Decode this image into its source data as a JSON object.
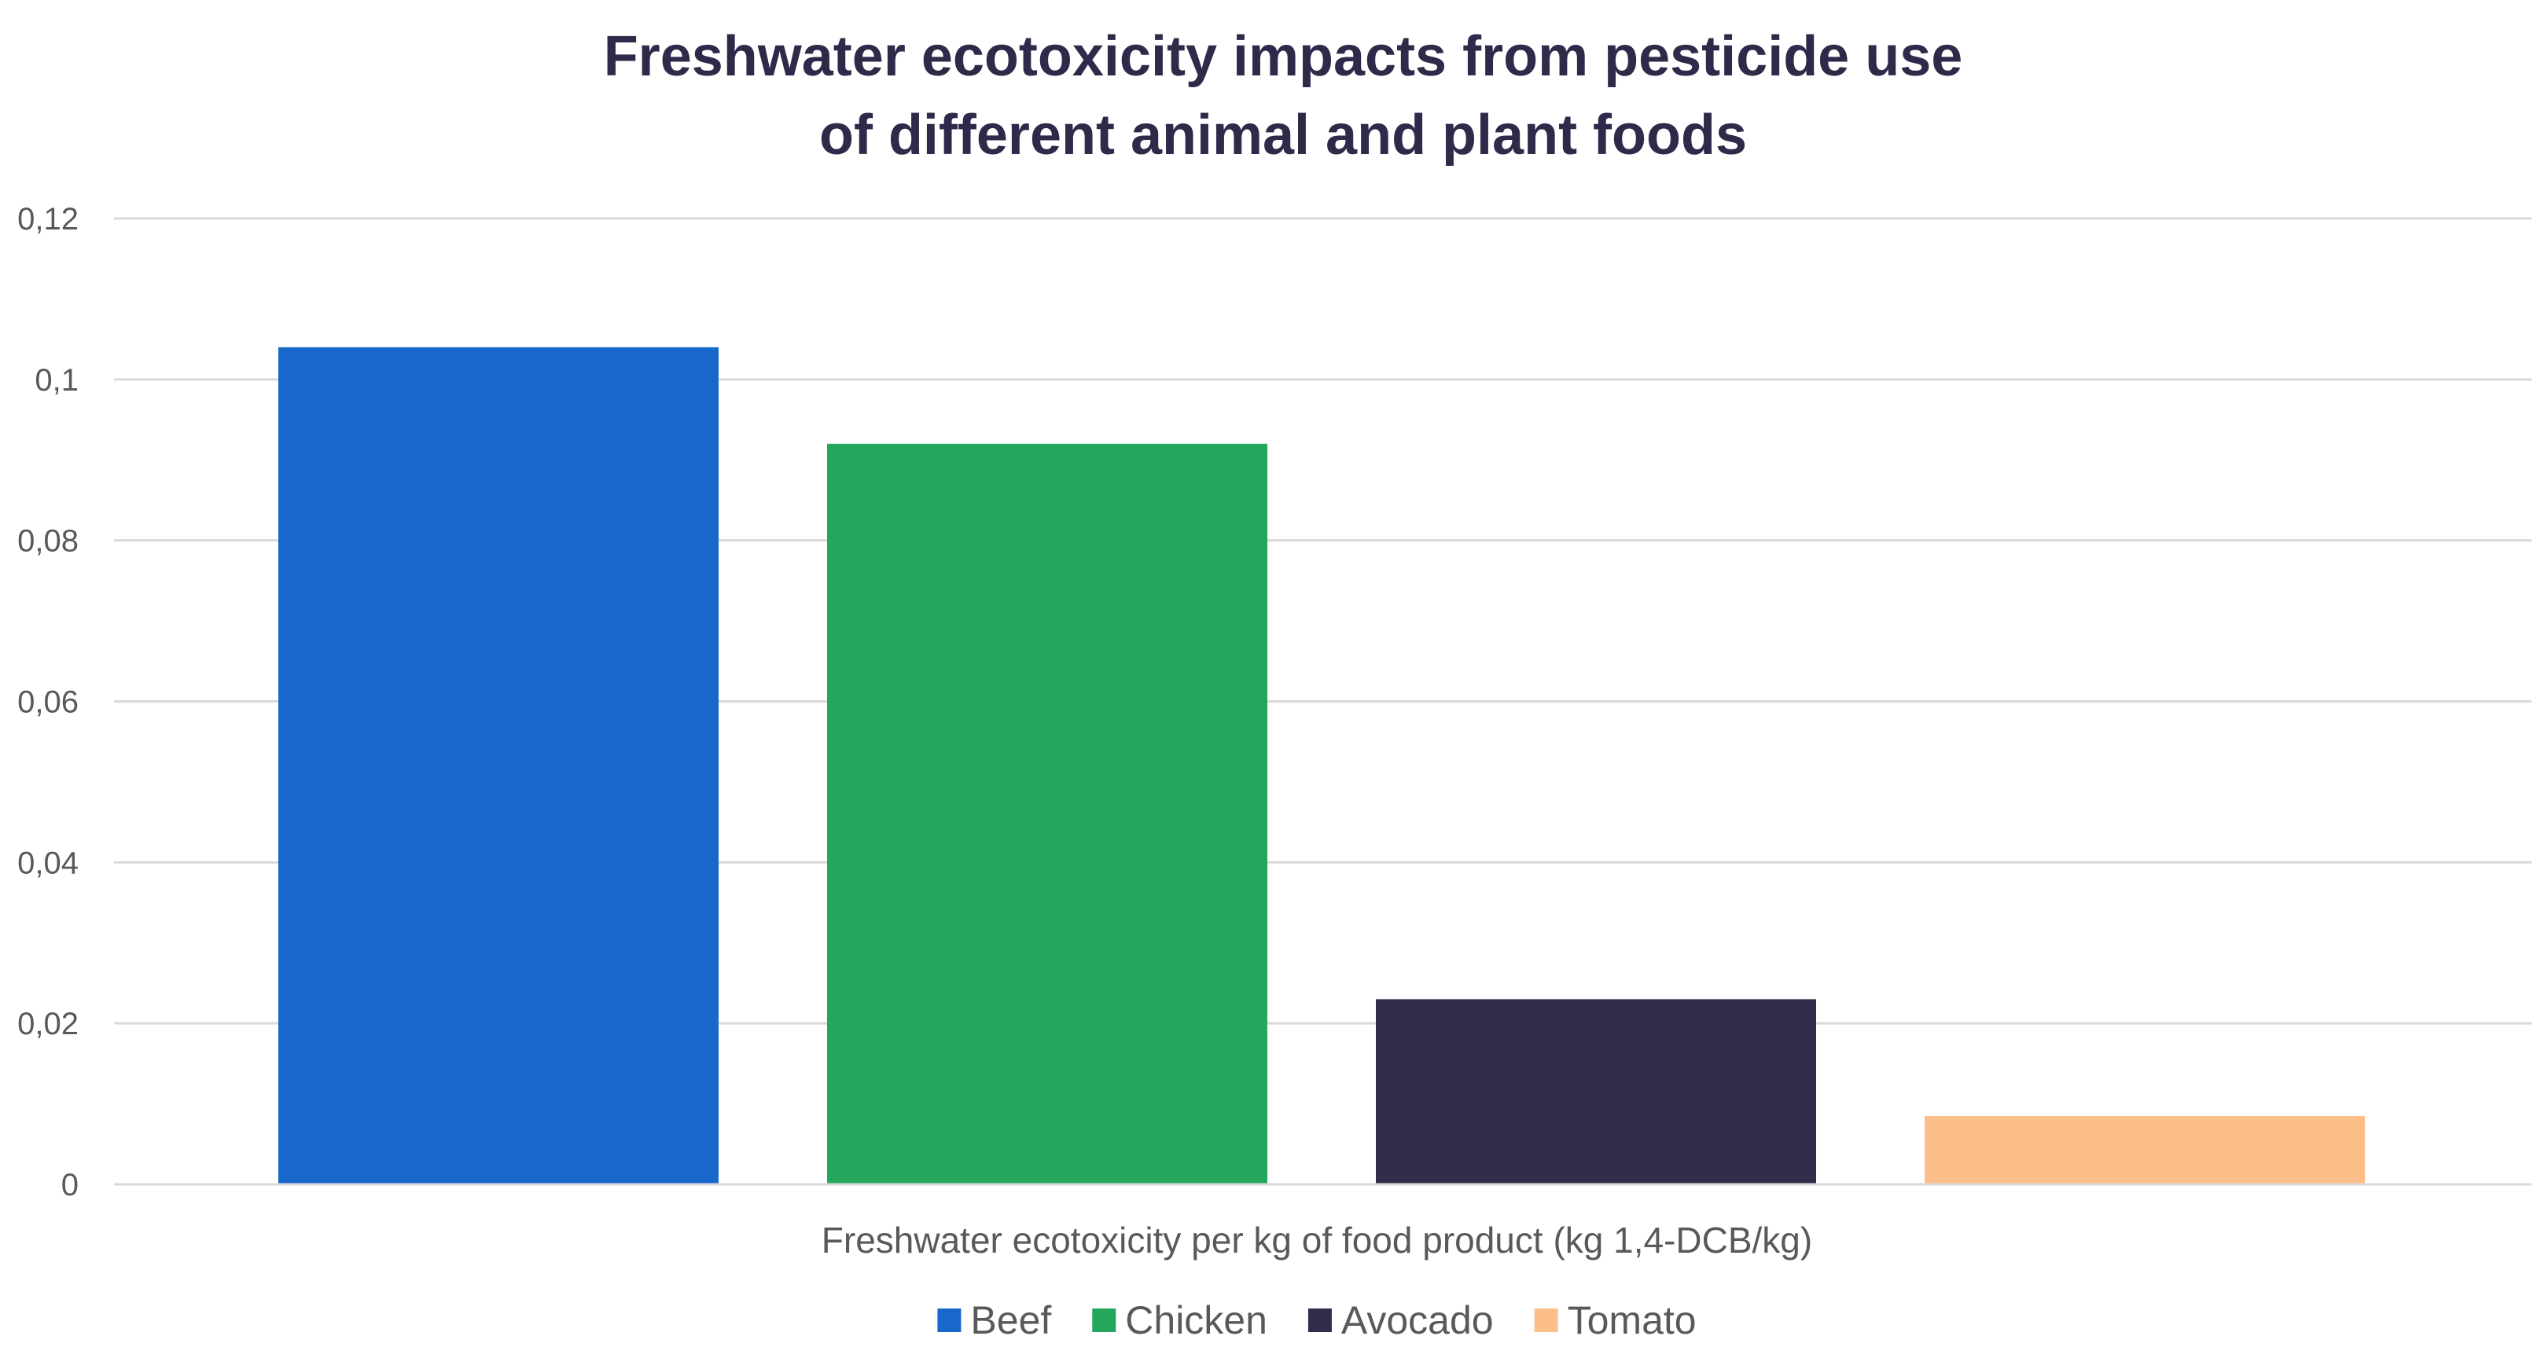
{
  "chart_data": {
    "type": "bar",
    "title_lines": [
      "Freshwater ecotoxicity impacts from pesticide use",
      "of different animal and plant foods"
    ],
    "xlabel": "Freshwater ecotoxicity per kg of food product (kg 1,4-DCB/kg)",
    "ylabel": "",
    "ylim": [
      0,
      0.12
    ],
    "yticks": [
      0,
      0.02,
      0.04,
      0.06,
      0.08,
      0.1,
      0.12
    ],
    "ytick_labels": [
      "0",
      "0,02",
      "0,04",
      "0,06",
      "0,08",
      "0,1",
      "0,12"
    ],
    "grid": true,
    "legend_position": "bottom",
    "series": [
      {
        "name": "Beef",
        "value": 0.104,
        "color": "#1868cc"
      },
      {
        "name": "Chicken",
        "value": 0.092,
        "color": "#24a75c"
      },
      {
        "name": "Avocado",
        "value": 0.023,
        "color": "#332b4a"
      },
      {
        "name": "Tomato",
        "value": 0.0085,
        "color": "#fdbf8a"
      }
    ]
  }
}
